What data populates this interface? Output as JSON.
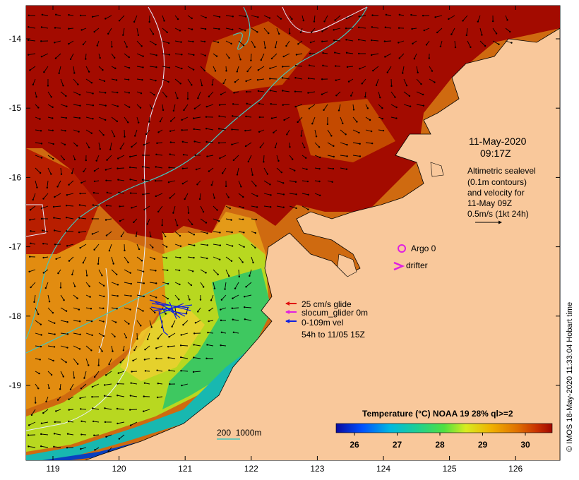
{
  "map": {
    "x_ticks": [
      "119",
      "120",
      "121",
      "122",
      "123",
      "124",
      "125",
      "126"
    ],
    "y_ticks": [
      "-14",
      "-15",
      "-16",
      "-17",
      "-18",
      "-19"
    ],
    "date_line1": "11-May-2020",
    "date_line2": "09:17Z",
    "altimetry_note": [
      "Altimetric sealevel",
      "(0.1m contours)",
      "and velocity for",
      "11-May 09Z",
      "0.5m/s (1kt 24h)"
    ],
    "argo_label": "Argo 0",
    "drifter_label": "drifter",
    "glider_legend": [
      "25 cm/s glide",
      "slocum_glider 0m",
      "0-109m vel",
      "54h to 11/05 15Z"
    ],
    "depth_legend": "200  1000m",
    "colorbar_title": "Temperature (°C) NOAA 19 28% ql>=2",
    "colorbar_ticks": [
      "26",
      "27",
      "28",
      "29",
      "30"
    ],
    "credit": "© IMOS 18-May-2020 11:33:04 Hobart time",
    "colors": {
      "land": "#f9c89b",
      "warm": "#a80d00",
      "mid": "#e07a00",
      "cool": "#28c36a",
      "contour": "#e8f0ff",
      "isobath": "#40c8c0",
      "argo": "#e020e0",
      "glider_red": "#e01010",
      "glider_blue": "#1020e0"
    }
  }
}
